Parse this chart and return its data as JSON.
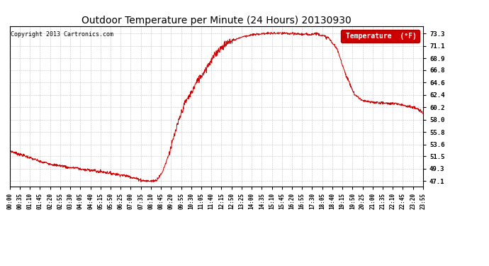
{
  "title": "Outdoor Temperature per Minute (24 Hours) 20130930",
  "copyright_text": "Copyright 2013 Cartronics.com",
  "legend_label": "Temperature  (°F)",
  "line_color": "#cc0000",
  "background_color": "#ffffff",
  "grid_color": "#bbbbbb",
  "yticks": [
    47.1,
    49.3,
    51.5,
    53.6,
    55.8,
    58.0,
    60.2,
    62.4,
    64.6,
    66.8,
    68.9,
    71.1,
    73.3
  ],
  "ylim": [
    46.2,
    74.5
  ],
  "xtick_labels": [
    "00:00",
    "00:35",
    "01:10",
    "01:45",
    "02:20",
    "02:55",
    "03:30",
    "04:05",
    "04:40",
    "05:15",
    "05:50",
    "06:25",
    "07:00",
    "07:35",
    "08:10",
    "08:45",
    "09:20",
    "09:55",
    "10:30",
    "11:05",
    "11:40",
    "12:15",
    "12:50",
    "13:25",
    "14:00",
    "14:35",
    "15:10",
    "15:45",
    "16:20",
    "16:55",
    "17:30",
    "18:05",
    "18:40",
    "19:15",
    "19:50",
    "20:25",
    "21:00",
    "21:35",
    "22:10",
    "22:45",
    "23:20",
    "23:55"
  ],
  "curve_keypoints_x": [
    0,
    35,
    70,
    105,
    140,
    175,
    210,
    245,
    280,
    315,
    350,
    385,
    420,
    455,
    460,
    470,
    490,
    510,
    530,
    555,
    575,
    590,
    610,
    635,
    650,
    670,
    695,
    715,
    730,
    750,
    765,
    790,
    810,
    840,
    870,
    900,
    930,
    960,
    990,
    1010,
    1030,
    1050,
    1055,
    1060,
    1065,
    1070,
    1075,
    1080,
    1110,
    1140,
    1170,
    1200,
    1230,
    1260,
    1290,
    1310,
    1330,
    1350,
    1380,
    1415,
    1439
  ],
  "curve_keypoints_y": [
    52.5,
    51.8,
    51.2,
    50.6,
    50.1,
    49.8,
    49.5,
    49.3,
    49.0,
    48.8,
    48.5,
    48.2,
    47.9,
    47.4,
    47.25,
    47.15,
    47.1,
    47.25,
    48.5,
    52.0,
    55.5,
    58.0,
    61.0,
    63.0,
    64.6,
    66.0,
    68.0,
    69.5,
    70.5,
    71.3,
    71.8,
    72.3,
    72.7,
    73.0,
    73.2,
    73.3,
    73.3,
    73.3,
    73.2,
    73.2,
    73.1,
    73.15,
    73.2,
    73.25,
    73.3,
    73.25,
    73.2,
    73.1,
    72.5,
    70.5,
    66.0,
    62.5,
    61.3,
    61.1,
    61.0,
    60.9,
    60.85,
    60.8,
    60.5,
    60.0,
    59.2
  ]
}
